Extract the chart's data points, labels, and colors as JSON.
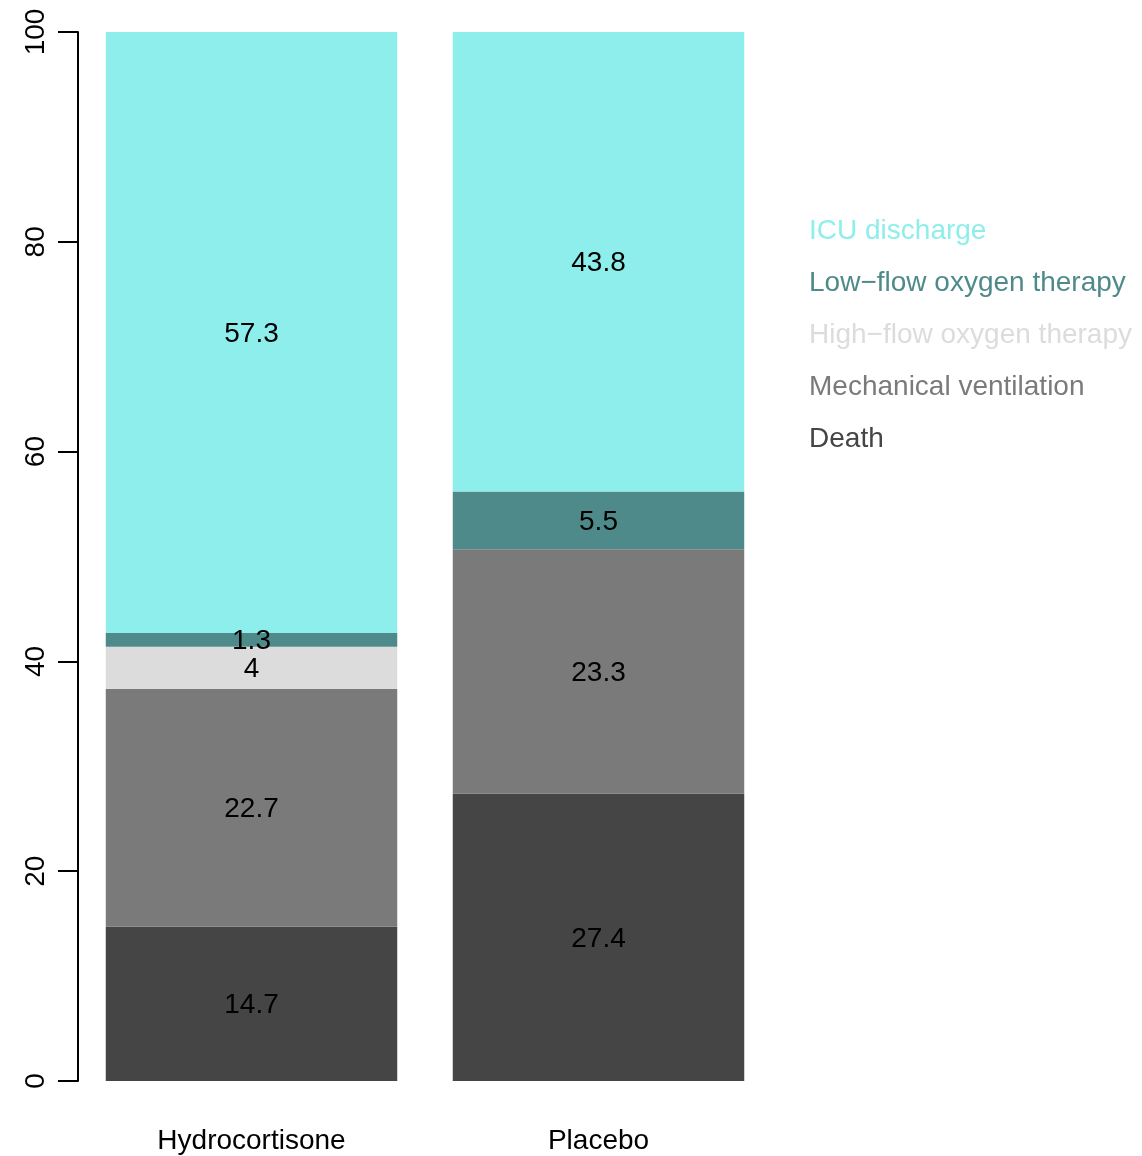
{
  "chart_data": {
    "type": "bar",
    "stacked": true,
    "categories": [
      "Hydrocortisone",
      "Placebo"
    ],
    "series": [
      {
        "name": "Death",
        "color": "#454545",
        "values": [
          14.7,
          27.4
        ]
      },
      {
        "name": "Mechanical ventilation",
        "color": "#7a7a7a",
        "values": [
          22.7,
          23.3
        ]
      },
      {
        "name": "High−flow oxygen therapy",
        "color": "#dcdcdc",
        "values": [
          4,
          0
        ],
        "value_labels": [
          "4",
          null
        ]
      },
      {
        "name": "Low−flow oxygen therapy",
        "color": "#4f8a8a",
        "values": [
          1.3,
          5.5
        ]
      },
      {
        "name": "ICU discharge",
        "color": "#8eeeec",
        "values": [
          57.3,
          43.8
        ]
      }
    ],
    "data_labels": true,
    "ylim": [
      0,
      100
    ],
    "yticks": [
      0,
      20,
      40,
      60,
      80,
      100
    ],
    "grid": false,
    "legend": "right"
  }
}
